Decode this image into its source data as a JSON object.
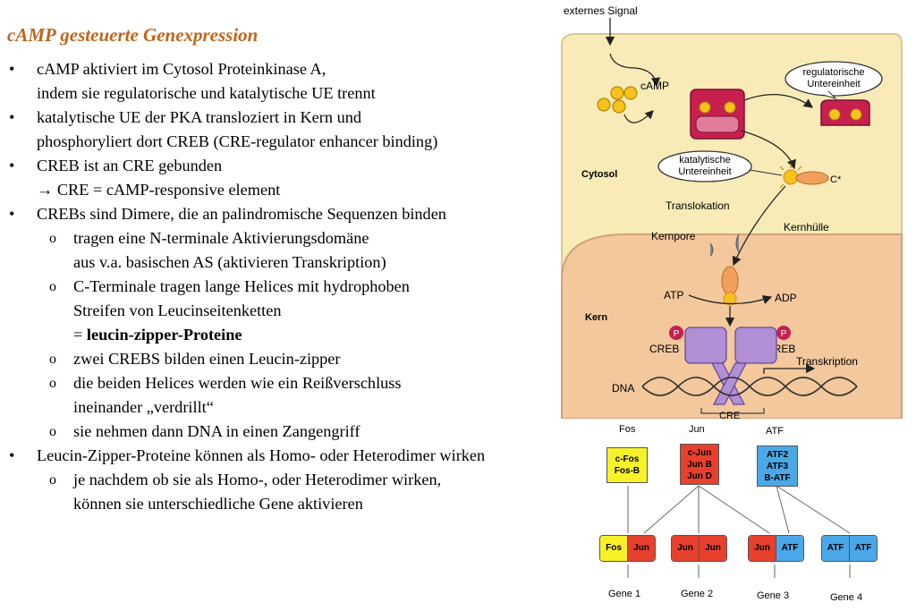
{
  "title": "cAMP gesteuerte Genexpression",
  "bullets": [
    {
      "lines": [
        "cAMP aktiviert im Cytosol Proteinkinase A,",
        "indem sie regulatorische und katalytische UE trennt"
      ]
    },
    {
      "lines": [
        "katalytische UE der PKA transloziert in Kern und",
        "phosphoryliert dort CREB (CRE-regulator enhancer binding)"
      ]
    },
    {
      "lines": [
        "CREB ist an CRE gebunden",
        "→ CRE = cAMP-responsive element"
      ]
    },
    {
      "lines": [
        "CREBs sind Dimere, die an palindromische Sequenzen binden"
      ]
    }
  ],
  "sub1": [
    {
      "lines": [
        "tragen eine N-terminale Aktivierungsdomäne",
        "aus v.a. basischen AS (aktivieren Transkription)"
      ]
    },
    {
      "lines": [
        "C-Terminale tragen lange Helices mit hydrophoben",
        "Streifen von Leucinseitenketten"
      ],
      "extra_prefix": "= ",
      "extra_bold": "leucin-zipper-Proteine"
    },
    {
      "lines": [
        "zwei CREBS bilden einen Leucin-zipper"
      ]
    },
    {
      "lines": [
        "die beiden Helices werden wie ein Reißverschluss",
        "ineinander „verdrillt“"
      ]
    },
    {
      "lines": [
        "sie nehmen dann DNA in einen Zangengriff"
      ]
    }
  ],
  "bullet5": {
    "lines": [
      "Leucin-Zipper-Proteine können als Homo- oder Heterodimer wirken"
    ]
  },
  "sub2": [
    {
      "lines": [
        "je nachdem ob sie als Homo-, oder Heterodimer wirken,",
        "können sie unterschiedliche Gene aktivieren"
      ]
    }
  ],
  "bullet_marker": "•",
  "sub_marker": "o",
  "figure": {
    "externes_signal": "externes Signal",
    "camp": "cAMP",
    "regulatorische": [
      "regulatorische",
      "Untereinheit"
    ],
    "katalytische": [
      "katalytische",
      "Untereinheit"
    ],
    "cytosol": "Cytosol",
    "c_star": "C*",
    "translokation": "Translokation",
    "kernpore": "Kernpore",
    "kernhuelle": "Kernhülle",
    "atp": "ATP",
    "adp": "ADP",
    "kern": "Kern",
    "p": "P",
    "creb_left": "CREB",
    "creb_right": "CREB",
    "transkription": "Transkription",
    "dna": "DNA",
    "cre": "CRE"
  },
  "families": {
    "headers": [
      "Fos",
      "Jun",
      "ATF"
    ],
    "fos_members": [
      "c-Fos",
      "Fos-B"
    ],
    "jun_members": [
      "c-Jun",
      "Jun B",
      "Jun D"
    ],
    "atf_members": [
      "ATF2",
      "ATF3",
      "B-ATF"
    ],
    "dimers": [
      [
        "Fos",
        "Jun"
      ],
      [
        "Jun",
        "Jun"
      ],
      [
        "Jun",
        "ATF"
      ],
      [
        "ATF",
        "ATF"
      ]
    ],
    "genes": [
      "Gene 1",
      "Gene 2",
      "Gene 3",
      "Gene 4"
    ],
    "colors": {
      "fos": "#f7f12a",
      "jun": "#e8402f",
      "atf": "#4aa8e8"
    }
  }
}
